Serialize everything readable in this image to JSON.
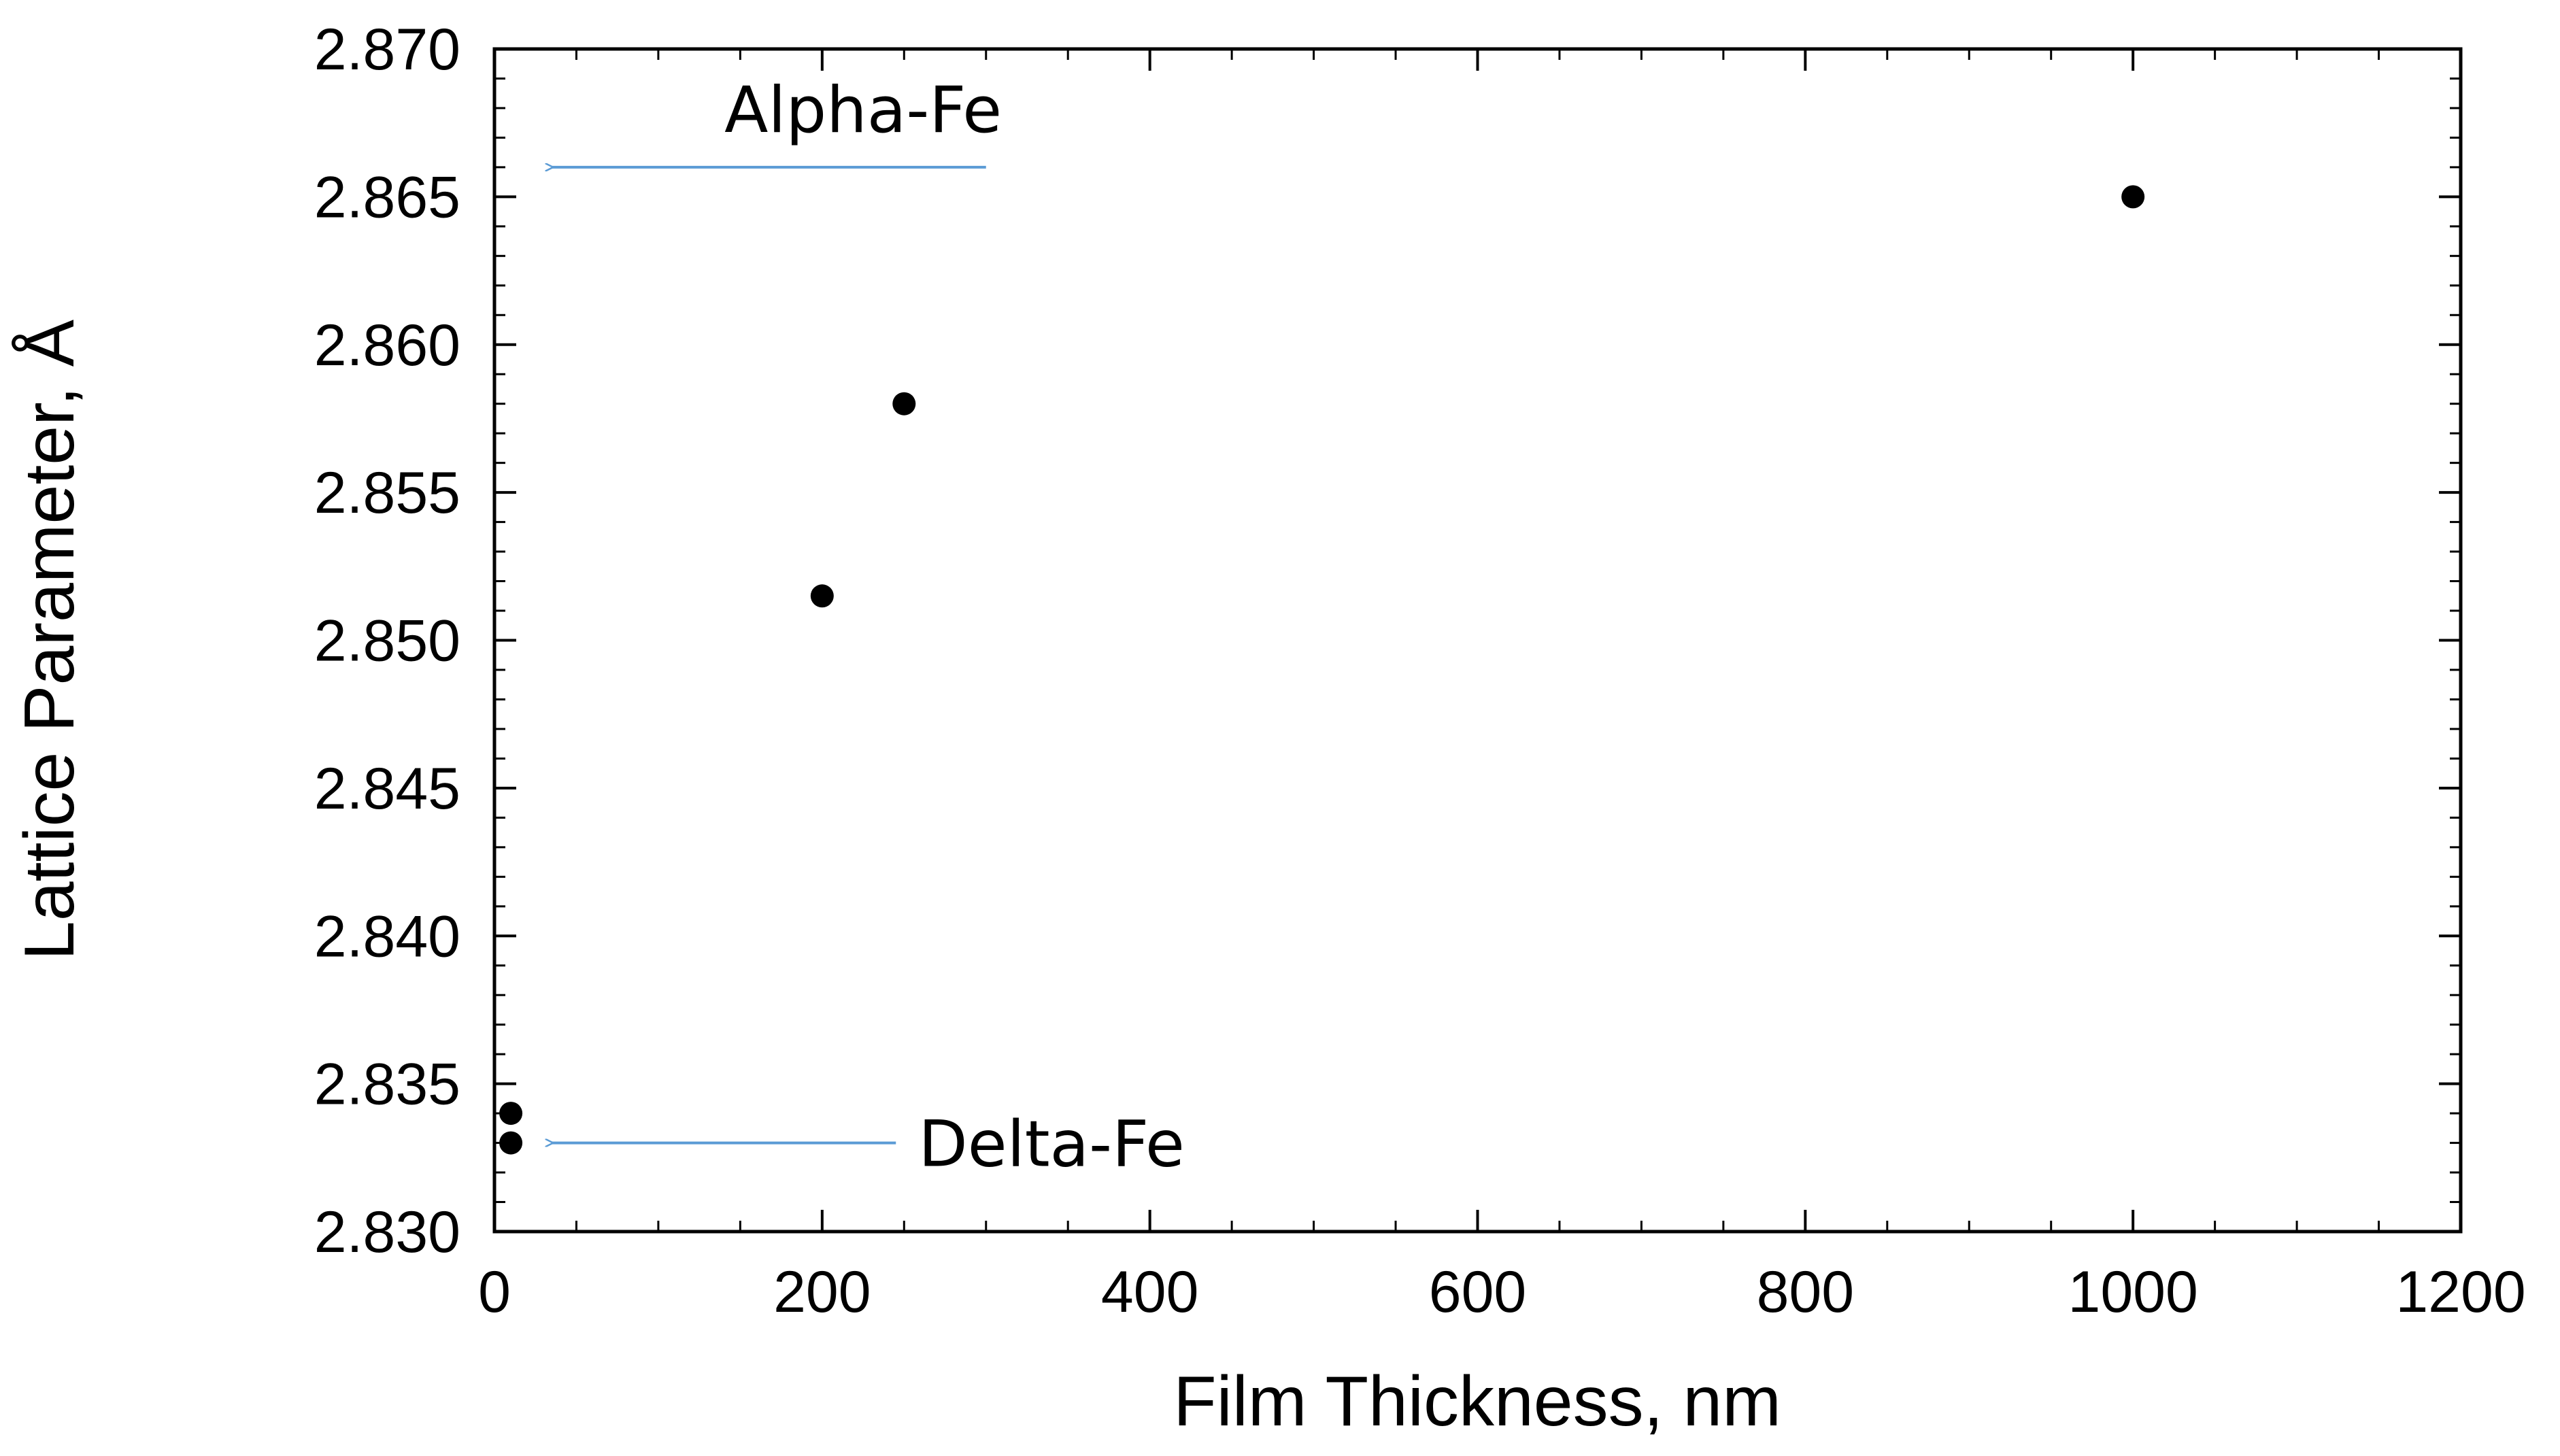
{
  "chart_data": {
    "type": "scatter",
    "title": "",
    "xlabel": "Film Thickness, nm",
    "ylabel": "Lattice Parameter, Å",
    "xlim": [
      0,
      1200
    ],
    "ylim": [
      2.83,
      2.87
    ],
    "x_ticks": [
      0,
      200,
      400,
      600,
      800,
      1000,
      1200
    ],
    "x_tick_labels": [
      "0",
      "200",
      "400",
      "600",
      "800",
      "1000",
      "1200"
    ],
    "y_ticks": [
      2.83,
      2.835,
      2.84,
      2.845,
      2.85,
      2.855,
      2.86,
      2.865,
      2.87
    ],
    "y_tick_labels": [
      "2.830",
      "2.835",
      "2.840",
      "2.845",
      "2.850",
      "2.855",
      "2.860",
      "2.865",
      "2.870"
    ],
    "grid": false,
    "legend": "none",
    "series": [
      {
        "points": [
          {
            "x": 10,
            "y": 2.834
          },
          {
            "x": 10,
            "y": 2.833
          },
          {
            "x": 200,
            "y": 2.8515
          },
          {
            "x": 250,
            "y": 2.858
          },
          {
            "x": 1000,
            "y": 2.865
          }
        ],
        "color": "#000000"
      }
    ],
    "annotations": [
      {
        "text": "Alpha-Fe",
        "arrow_from": {
          "x": 300,
          "y": 2.866
        },
        "arrow_to": {
          "x": 35,
          "y": 2.866
        },
        "color": "#5b9bd5"
      },
      {
        "text": "Delta-Fe",
        "arrow_from": {
          "x": 245,
          "y": 2.833
        },
        "arrow_to": {
          "x": 35,
          "y": 2.833
        },
        "color": "#5b9bd5"
      }
    ]
  }
}
